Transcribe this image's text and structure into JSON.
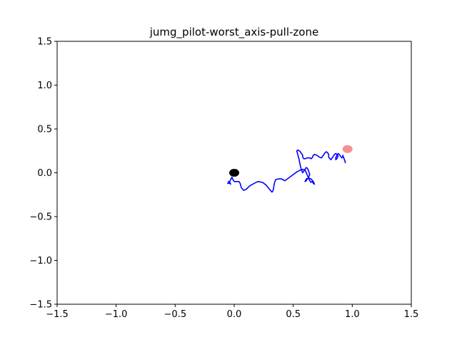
{
  "chart_data": {
    "type": "line",
    "title": "jumg_pilot-worst_axis-pull-zone",
    "xlabel": "",
    "ylabel": "",
    "xlim": [
      -1.5,
      1.5
    ],
    "ylim": [
      -1.5,
      1.5
    ],
    "x_ticks": [
      -1.5,
      -1.0,
      -0.5,
      0.0,
      0.5,
      1.0,
      1.5
    ],
    "y_ticks": [
      -1.5,
      -1.0,
      -0.5,
      0.0,
      0.5,
      1.0,
      1.5
    ],
    "x_tick_labels": [
      "−1.5",
      "−1.0",
      "−0.5",
      "0.0",
      "0.5",
      "1.0",
      "1.5"
    ],
    "y_tick_labels": [
      "−1.5",
      "−1.0",
      "−0.5",
      "0.0",
      "0.5",
      "1.0",
      "1.5"
    ],
    "grid": false,
    "series": [
      {
        "color": "#0000ff",
        "x": [
          -0.06,
          -0.04,
          -0.05,
          -0.03,
          -0.04,
          -0.03,
          -0.02,
          -0.01,
          0.0,
          0.02,
          0.04,
          0.05,
          0.06,
          0.08,
          0.1,
          0.13,
          0.17,
          0.2,
          0.24,
          0.27,
          0.3,
          0.32,
          0.33,
          0.34,
          0.35,
          0.37,
          0.4,
          0.43,
          0.46,
          0.5,
          0.53,
          0.56,
          0.58,
          0.6,
          0.61,
          0.62,
          0.63,
          0.64,
          0.65,
          0.66,
          0.67,
          0.68,
          0.67,
          0.65,
          0.63,
          0.61,
          0.6,
          0.61,
          0.63,
          0.64,
          0.63,
          0.62,
          0.61,
          0.6,
          0.59,
          0.58,
          0.57,
          0.56,
          0.55,
          0.54,
          0.53,
          0.54,
          0.56,
          0.57,
          0.58,
          0.58,
          0.59,
          0.6,
          0.62,
          0.64,
          0.65,
          0.66,
          0.67,
          0.68,
          0.7,
          0.72,
          0.74,
          0.75,
          0.76,
          0.77,
          0.78,
          0.79,
          0.8,
          0.8,
          0.81,
          0.82,
          0.83,
          0.84,
          0.85,
          0.86,
          0.87,
          0.88,
          0.87,
          0.86,
          0.86,
          0.87,
          0.88,
          0.89,
          0.9,
          0.91,
          0.92,
          0.92,
          0.93,
          0.94,
          0.94
        ],
        "y": [
          -0.12,
          -0.12,
          -0.1,
          -0.13,
          -0.1,
          -0.08,
          -0.05,
          -0.08,
          -0.1,
          -0.1,
          -0.1,
          -0.12,
          -0.17,
          -0.2,
          -0.19,
          -0.15,
          -0.12,
          -0.1,
          -0.11,
          -0.14,
          -0.19,
          -0.22,
          -0.2,
          -0.12,
          -0.08,
          -0.07,
          -0.07,
          -0.09,
          -0.06,
          -0.02,
          0.01,
          0.03,
          0.04,
          0.03,
          0.0,
          -0.03,
          -0.06,
          -0.09,
          -0.11,
          -0.1,
          -0.12,
          -0.13,
          -0.1,
          -0.07,
          -0.06,
          -0.07,
          -0.1,
          -0.09,
          -0.05,
          -0.02,
          0.02,
          0.05,
          0.06,
          0.04,
          0.02,
          0.0,
          0.03,
          0.08,
          0.15,
          0.2,
          0.25,
          0.26,
          0.24,
          0.22,
          0.2,
          0.18,
          0.16,
          0.16,
          0.17,
          0.17,
          0.16,
          0.17,
          0.2,
          0.21,
          0.2,
          0.18,
          0.17,
          0.19,
          0.21,
          0.23,
          0.24,
          0.23,
          0.21,
          0.18,
          0.16,
          0.15,
          0.17,
          0.19,
          0.21,
          0.22,
          0.21,
          0.19,
          0.16,
          0.15,
          0.17,
          0.2,
          0.22,
          0.21,
          0.19,
          0.17,
          0.18,
          0.2,
          0.16,
          0.13,
          0.11
        ]
      }
    ],
    "markers": [
      {
        "name": "start",
        "x": 0.0,
        "y": 0.0,
        "color": "#000000"
      },
      {
        "name": "target",
        "x": 0.96,
        "y": 0.27,
        "color": "#f08080"
      }
    ]
  }
}
